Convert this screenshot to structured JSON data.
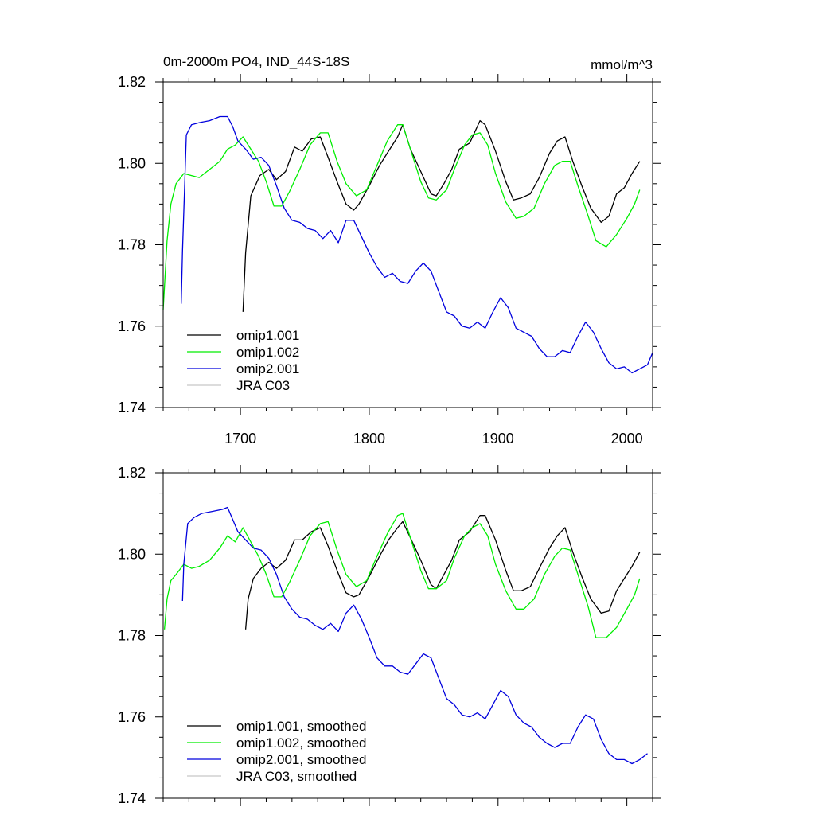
{
  "chart_data": [
    {
      "type": "line",
      "title_left": "0m-2000m PO4, IND_44S-18S",
      "title_right": "mmol/m^3",
      "xlim": [
        1640,
        2020
      ],
      "ylim": [
        1.74,
        1.82
      ],
      "xticks": [
        1700,
        1800,
        1900,
        2000
      ],
      "xtick_labels": [
        "1700",
        "1800",
        "1900",
        "2000"
      ],
      "yticks": [
        1.74,
        1.76,
        1.78,
        1.8,
        1.82
      ],
      "ytick_labels": [
        "1.74",
        "1.76",
        "1.78",
        "1.80",
        "1.82"
      ],
      "legend": [
        "omip1.001",
        "omip1.002",
        "omip2.001",
        "JRA C03"
      ],
      "legend_position": "bottom-left",
      "series": [
        {
          "name": "omip1.001",
          "color": "#000000",
          "x": [
            1702,
            1704,
            1708,
            1715,
            1722,
            1728,
            1735,
            1742,
            1748,
            1755,
            1762,
            1768,
            1775,
            1782,
            1788,
            1792,
            1800,
            1808,
            1815,
            1822,
            1826,
            1832,
            1840,
            1848,
            1852,
            1858,
            1864,
            1870,
            1878,
            1886,
            1890,
            1898,
            1906,
            1912,
            1918,
            1925,
            1932,
            1940,
            1946,
            1952,
            1958,
            1965,
            1972,
            1980,
            1986,
            1992,
            1998,
            2004,
            2010
          ],
          "y": [
            1.7635,
            1.778,
            1.792,
            1.797,
            1.7985,
            1.796,
            1.798,
            1.804,
            1.803,
            1.806,
            1.8065,
            1.8015,
            1.7955,
            1.79,
            1.7885,
            1.79,
            1.7945,
            1.7995,
            1.803,
            1.8065,
            1.8095,
            1.8035,
            1.798,
            1.7925,
            1.792,
            1.795,
            1.7985,
            1.8035,
            1.805,
            1.8105,
            1.8095,
            1.803,
            1.7955,
            1.791,
            1.7915,
            1.7925,
            1.7965,
            1.8025,
            1.8055,
            1.8065,
            1.8005,
            1.7945,
            1.789,
            1.7855,
            1.787,
            1.7925,
            1.794,
            1.7975,
            1.8005
          ]
        },
        {
          "name": "omip1.002",
          "color": "#00ee00",
          "x": [
            1640,
            1643,
            1646,
            1650,
            1656,
            1662,
            1668,
            1676,
            1684,
            1690,
            1696,
            1702,
            1708,
            1714,
            1720,
            1726,
            1732,
            1738,
            1746,
            1754,
            1762,
            1768,
            1775,
            1782,
            1790,
            1798,
            1806,
            1814,
            1822,
            1826,
            1832,
            1840,
            1846,
            1852,
            1860,
            1866,
            1874,
            1880,
            1886,
            1892,
            1898,
            1906,
            1914,
            1920,
            1928,
            1936,
            1944,
            1950,
            1956,
            1962,
            1970,
            1976,
            1984,
            1992,
            2000,
            2006,
            2010
          ],
          "y": [
            1.764,
            1.781,
            1.79,
            1.795,
            1.7975,
            1.797,
            1.7965,
            1.7985,
            1.8005,
            1.8035,
            1.8045,
            1.8065,
            1.8035,
            1.8005,
            1.7955,
            1.7895,
            1.7895,
            1.793,
            1.7985,
            1.8045,
            1.8075,
            1.8075,
            1.8005,
            1.795,
            1.792,
            1.7935,
            1.7995,
            1.8055,
            1.8095,
            1.8095,
            1.8035,
            1.7955,
            1.7915,
            1.791,
            1.7935,
            1.7985,
            1.8045,
            1.807,
            1.8075,
            1.8045,
            1.7975,
            1.7905,
            1.7865,
            1.787,
            1.789,
            1.795,
            1.7995,
            1.8005,
            1.8005,
            1.7945,
            1.787,
            1.781,
            1.7795,
            1.7825,
            1.7865,
            1.79,
            1.7935
          ]
        },
        {
          "name": "omip2.001",
          "color": "#0000dd",
          "x": [
            1654,
            1655,
            1658,
            1662,
            1668,
            1676,
            1684,
            1690,
            1694,
            1698,
            1704,
            1710,
            1716,
            1722,
            1728,
            1734,
            1740,
            1746,
            1752,
            1758,
            1764,
            1770,
            1776,
            1782,
            1788,
            1794,
            1800,
            1806,
            1812,
            1818,
            1824,
            1830,
            1836,
            1842,
            1848,
            1854,
            1860,
            1866,
            1872,
            1878,
            1884,
            1890,
            1896,
            1902,
            1908,
            1914,
            1920,
            1926,
            1932,
            1938,
            1944,
            1950,
            1956,
            1962,
            1968,
            1974,
            1980,
            1986,
            1992,
            1998,
            2004,
            2010,
            2016,
            2020
          ],
          "y": [
            1.7655,
            1.7785,
            1.807,
            1.8095,
            1.81,
            1.8105,
            1.8115,
            1.8115,
            1.809,
            1.8055,
            1.8035,
            1.801,
            1.8015,
            1.7995,
            1.7945,
            1.789,
            1.786,
            1.7855,
            1.784,
            1.7835,
            1.7815,
            1.7835,
            1.7805,
            1.786,
            1.786,
            1.782,
            1.778,
            1.7745,
            1.772,
            1.773,
            1.771,
            1.7705,
            1.7735,
            1.7755,
            1.7735,
            1.7685,
            1.7635,
            1.7625,
            1.76,
            1.7595,
            1.761,
            1.7595,
            1.7635,
            1.767,
            1.7645,
            1.7595,
            1.7585,
            1.7575,
            1.7545,
            1.7525,
            1.7525,
            1.754,
            1.7535,
            1.7575,
            1.761,
            1.7585,
            1.7545,
            1.751,
            1.7495,
            1.75,
            1.7485,
            1.7495,
            1.7505,
            1.7535
          ]
        },
        {
          "name": "JRA C03",
          "color": "#c8c8c8",
          "x": [],
          "y": []
        }
      ]
    },
    {
      "type": "line",
      "xlim": [
        1640,
        2020
      ],
      "ylim": [
        1.74,
        1.82
      ],
      "xticks": [
        1700,
        1800,
        1900,
        2000
      ],
      "yticks": [
        1.74,
        1.76,
        1.78,
        1.8,
        1.82
      ],
      "ytick_labels": [
        "1.74",
        "1.76",
        "1.78",
        "1.80",
        "1.82"
      ],
      "legend": [
        "omip1.001, smoothed",
        "omip1.002, smoothed",
        "omip2.001, smoothed",
        "JRA C03, smoothed"
      ],
      "legend_position": "bottom-left",
      "series": [
        {
          "name": "omip1.001, smoothed",
          "color": "#000000",
          "x": [
            1704,
            1706,
            1710,
            1716,
            1722,
            1728,
            1735,
            1742,
            1748,
            1755,
            1762,
            1768,
            1775,
            1782,
            1788,
            1792,
            1800,
            1808,
            1815,
            1822,
            1826,
            1832,
            1840,
            1848,
            1852,
            1858,
            1864,
            1870,
            1878,
            1886,
            1890,
            1898,
            1906,
            1912,
            1918,
            1925,
            1932,
            1940,
            1946,
            1952,
            1958,
            1965,
            1972,
            1980,
            1986,
            1992,
            1998,
            2004,
            2010
          ],
          "y": [
            1.7815,
            1.789,
            1.794,
            1.7965,
            1.798,
            1.7965,
            1.7985,
            1.8035,
            1.8035,
            1.8055,
            1.8065,
            1.802,
            1.796,
            1.7905,
            1.7895,
            1.79,
            1.7945,
            1.7995,
            1.8035,
            1.8065,
            1.808,
            1.804,
            1.7985,
            1.7925,
            1.7915,
            1.795,
            1.7985,
            1.8035,
            1.8055,
            1.8095,
            1.8095,
            1.8035,
            1.796,
            1.791,
            1.791,
            1.792,
            1.7965,
            1.8015,
            1.8045,
            1.8065,
            1.8005,
            1.7945,
            1.789,
            1.7855,
            1.786,
            1.791,
            1.794,
            1.797,
            1.8005
          ]
        },
        {
          "name": "omip1.002, smoothed",
          "color": "#00ee00",
          "x": [
            1641,
            1643,
            1646,
            1650,
            1656,
            1662,
            1668,
            1676,
            1684,
            1690,
            1696,
            1702,
            1708,
            1714,
            1720,
            1726,
            1732,
            1738,
            1746,
            1754,
            1762,
            1768,
            1775,
            1782,
            1790,
            1798,
            1806,
            1814,
            1822,
            1826,
            1832,
            1840,
            1846,
            1852,
            1860,
            1866,
            1874,
            1880,
            1886,
            1892,
            1898,
            1906,
            1914,
            1920,
            1928,
            1936,
            1944,
            1950,
            1956,
            1962,
            1970,
            1976,
            1984,
            1992,
            2000,
            2006,
            2010
          ],
          "y": [
            1.7815,
            1.789,
            1.7935,
            1.795,
            1.7975,
            1.7965,
            1.797,
            1.7985,
            1.8015,
            1.8045,
            1.803,
            1.8065,
            1.803,
            1.7995,
            1.795,
            1.7895,
            1.7895,
            1.793,
            1.7985,
            1.8045,
            1.8075,
            1.808,
            1.801,
            1.795,
            1.792,
            1.7935,
            1.7995,
            1.805,
            1.8095,
            1.81,
            1.804,
            1.796,
            1.7915,
            1.7915,
            1.7935,
            1.799,
            1.8045,
            1.8065,
            1.8075,
            1.8045,
            1.7975,
            1.791,
            1.7865,
            1.7865,
            1.789,
            1.795,
            1.7995,
            1.8015,
            1.801,
            1.795,
            1.787,
            1.7795,
            1.7795,
            1.782,
            1.7865,
            1.79,
            1.794
          ]
        },
        {
          "name": "omip2.001, smoothed",
          "color": "#0000dd",
          "x": [
            1655,
            1656,
            1659,
            1664,
            1670,
            1678,
            1686,
            1690,
            1694,
            1698,
            1704,
            1710,
            1716,
            1722,
            1728,
            1734,
            1740,
            1746,
            1752,
            1758,
            1764,
            1770,
            1776,
            1782,
            1788,
            1794,
            1800,
            1806,
            1812,
            1818,
            1824,
            1830,
            1836,
            1842,
            1848,
            1854,
            1860,
            1866,
            1872,
            1878,
            1884,
            1890,
            1896,
            1902,
            1908,
            1914,
            1920,
            1926,
            1932,
            1938,
            1944,
            1950,
            1956,
            1962,
            1968,
            1974,
            1980,
            1986,
            1992,
            1998,
            2004,
            2010,
            2016
          ],
          "y": [
            1.7885,
            1.7975,
            1.8075,
            1.809,
            1.81,
            1.8105,
            1.811,
            1.8115,
            1.8085,
            1.8055,
            1.8035,
            1.8015,
            1.801,
            1.799,
            1.795,
            1.7895,
            1.7865,
            1.7845,
            1.784,
            1.7825,
            1.7815,
            1.783,
            1.781,
            1.7855,
            1.7875,
            1.784,
            1.7795,
            1.7745,
            1.7725,
            1.7725,
            1.771,
            1.7705,
            1.773,
            1.7755,
            1.7745,
            1.7695,
            1.7645,
            1.763,
            1.7605,
            1.76,
            1.761,
            1.7595,
            1.763,
            1.7665,
            1.765,
            1.7605,
            1.7585,
            1.7575,
            1.755,
            1.7535,
            1.7525,
            1.7535,
            1.7535,
            1.7575,
            1.7605,
            1.7595,
            1.7545,
            1.751,
            1.7495,
            1.7495,
            1.7485,
            1.7495,
            1.751
          ]
        },
        {
          "name": "JRA C03, smoothed",
          "color": "#c8c8c8",
          "x": [],
          "y": []
        }
      ]
    }
  ]
}
